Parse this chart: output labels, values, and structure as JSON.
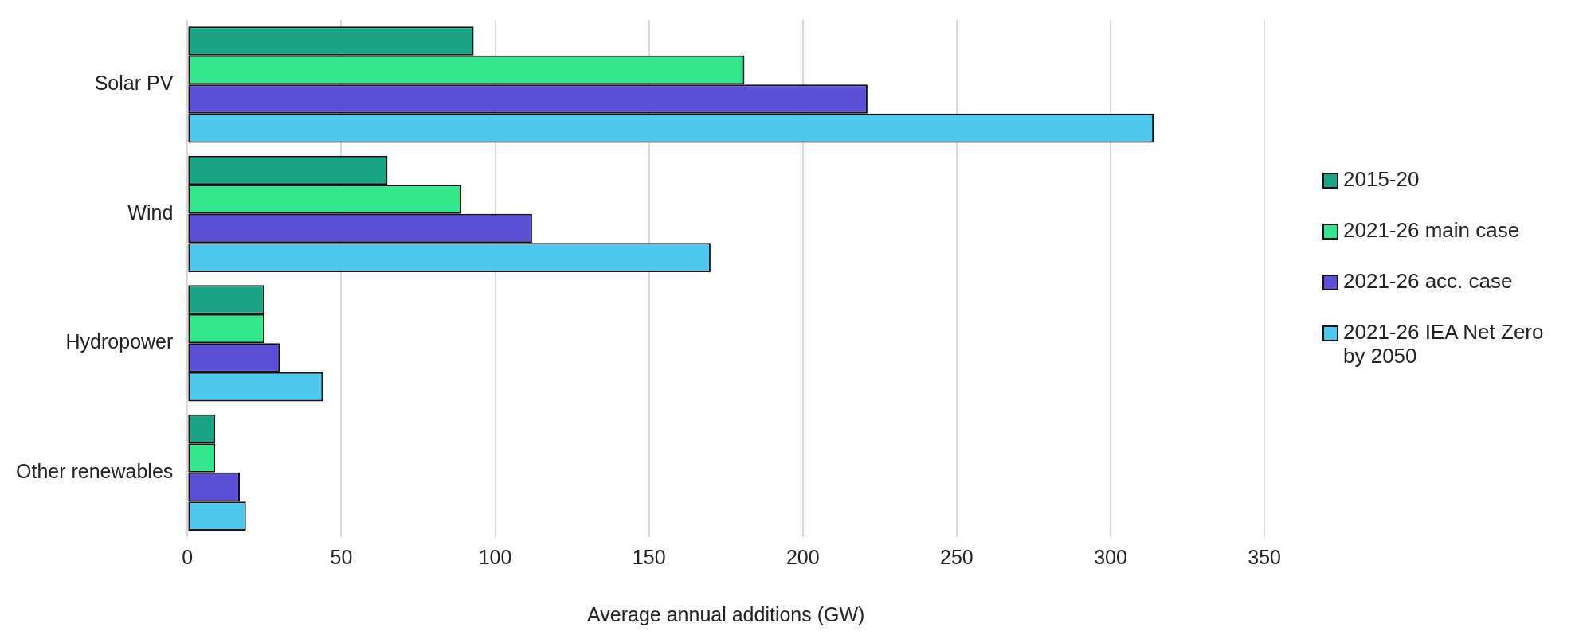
{
  "chart_data": {
    "type": "bar",
    "orientation": "horizontal",
    "xlabel": "Average annual additions (GW)",
    "categories": [
      "Solar PV",
      "Wind",
      "Hydropower",
      "Other renewables"
    ],
    "series": [
      {
        "name": "2015-20",
        "color": "#1aa385",
        "values": [
          93,
          65,
          25,
          9
        ]
      },
      {
        "name": "2021-26 main case",
        "color": "#33e68c",
        "values": [
          181,
          89,
          25,
          9
        ]
      },
      {
        "name": "2021-26 acc. case",
        "color": "#5b4fd6",
        "values": [
          221,
          112,
          30,
          17
        ]
      },
      {
        "name": "2021-26 IEA Net Zero by 2050",
        "color": "#4fc8f0",
        "values": [
          314,
          170,
          44,
          19
        ]
      }
    ],
    "xlim": [
      0,
      350
    ],
    "xticks": [
      0,
      50,
      100,
      150,
      200,
      250,
      300,
      350
    ],
    "grid": "x",
    "legend": "right"
  }
}
